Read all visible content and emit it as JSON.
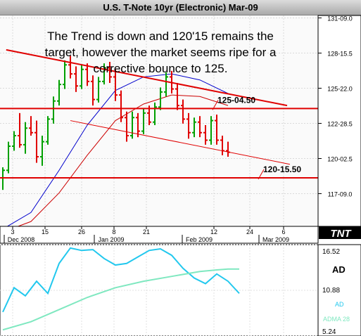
{
  "title": "U.S. T-Note 10yr (Electronic) Mar-09",
  "annotation": {
    "line1": "The Trend is down and 120'15 remains the",
    "line2": "target, however the market seems ripe for a",
    "line3": "corrective bounce to 125."
  },
  "logo_text": "TNT",
  "colors": {
    "bull_candle": "#00a000",
    "bear_candle": "#e00000",
    "trendline": "#e00000",
    "ma_fast": "#0000cc",
    "ma_slow": "#cc0000",
    "ad_line": "#22c8ee",
    "adma_line": "#7fe8c0"
  },
  "chart_data": [
    {
      "type": "candlestick",
      "title": "U.S. T-Note 10yr (Electronic) Mar-09",
      "y_ticks": [
        "131-09.0",
        "128-15.5",
        "125-22.0",
        "122-28.5",
        "120-02.5",
        "117-09.0"
      ],
      "ylim": [
        117.28,
        131.28
      ],
      "x_ticks": [
        "3",
        "15",
        "26",
        "8",
        "21",
        "12",
        "24",
        "6"
      ],
      "x_month_labels": [
        "Dec 2008",
        "Jan 2009",
        "Feb 2009",
        "Mar 2009"
      ],
      "grid": true,
      "candles": [
        {
          "o": 120.5,
          "h": 121.2,
          "l": 119.7,
          "c": 121.0
        },
        {
          "o": 121.0,
          "h": 122.9,
          "l": 120.8,
          "c": 122.6
        },
        {
          "o": 122.6,
          "h": 123.6,
          "l": 122.3,
          "c": 123.3
        },
        {
          "o": 123.3,
          "h": 124.8,
          "l": 122.5,
          "c": 122.7
        },
        {
          "o": 122.7,
          "h": 124.2,
          "l": 122.1,
          "c": 123.8
        },
        {
          "o": 123.8,
          "h": 124.6,
          "l": 123.3,
          "c": 123.5
        },
        {
          "o": 123.5,
          "h": 124.3,
          "l": 121.5,
          "c": 121.9
        },
        {
          "o": 121.9,
          "h": 123.3,
          "l": 121.3,
          "c": 122.9
        },
        {
          "o": 122.9,
          "h": 124.6,
          "l": 122.7,
          "c": 124.4
        },
        {
          "o": 124.4,
          "h": 125.9,
          "l": 124.1,
          "c": 125.6
        },
        {
          "o": 125.6,
          "h": 127.0,
          "l": 125.3,
          "c": 126.7
        },
        {
          "o": 126.7,
          "h": 128.3,
          "l": 126.4,
          "c": 128.0
        },
        {
          "o": 128.0,
          "h": 128.6,
          "l": 127.1,
          "c": 127.4
        },
        {
          "o": 127.4,
          "h": 127.9,
          "l": 126.2,
          "c": 126.6
        },
        {
          "o": 126.6,
          "h": 128.0,
          "l": 126.4,
          "c": 127.7
        },
        {
          "o": 127.7,
          "h": 128.1,
          "l": 126.6,
          "c": 126.9
        },
        {
          "o": 126.9,
          "h": 127.3,
          "l": 125.3,
          "c": 125.7
        },
        {
          "o": 125.7,
          "h": 127.2,
          "l": 125.5,
          "c": 126.9
        },
        {
          "o": 126.9,
          "h": 128.1,
          "l": 126.7,
          "c": 127.8
        },
        {
          "o": 127.8,
          "h": 128.2,
          "l": 126.8,
          "c": 127.2
        },
        {
          "o": 127.2,
          "h": 127.7,
          "l": 125.6,
          "c": 126.0
        },
        {
          "o": 126.0,
          "h": 126.3,
          "l": 124.2,
          "c": 124.5
        },
        {
          "o": 124.5,
          "h": 124.9,
          "l": 122.9,
          "c": 123.3
        },
        {
          "o": 123.3,
          "h": 124.9,
          "l": 123.1,
          "c": 124.5
        },
        {
          "o": 124.5,
          "h": 124.8,
          "l": 123.2,
          "c": 123.6
        },
        {
          "o": 123.6,
          "h": 125.1,
          "l": 123.4,
          "c": 124.8
        },
        {
          "o": 124.8,
          "h": 125.3,
          "l": 124.0,
          "c": 124.2
        },
        {
          "o": 124.2,
          "h": 125.5,
          "l": 124.0,
          "c": 125.2
        },
        {
          "o": 125.2,
          "h": 126.5,
          "l": 125.0,
          "c": 126.2
        },
        {
          "o": 126.2,
          "h": 127.5,
          "l": 125.9,
          "c": 127.2
        },
        {
          "o": 127.2,
          "h": 127.6,
          "l": 126.1,
          "c": 126.4
        },
        {
          "o": 126.4,
          "h": 126.8,
          "l": 125.0,
          "c": 125.3
        },
        {
          "o": 125.3,
          "h": 125.7,
          "l": 124.1,
          "c": 124.4
        },
        {
          "o": 124.4,
          "h": 124.8,
          "l": 123.1,
          "c": 123.5
        },
        {
          "o": 123.5,
          "h": 124.5,
          "l": 123.2,
          "c": 124.2
        },
        {
          "o": 124.2,
          "h": 124.6,
          "l": 123.2,
          "c": 123.5
        },
        {
          "o": 123.5,
          "h": 124.0,
          "l": 122.7,
          "c": 123.0
        },
        {
          "o": 123.0,
          "h": 124.6,
          "l": 122.7,
          "c": 124.3
        },
        {
          "o": 124.3,
          "h": 124.7,
          "l": 122.7,
          "c": 123.0
        },
        {
          "o": 123.0,
          "h": 123.3,
          "l": 122.0,
          "c": 122.3
        },
        {
          "o": 122.3,
          "h": 122.9,
          "l": 121.9,
          "c": 122.2
        }
      ],
      "moving_averages": [
        {
          "color": "blue",
          "points": [
            [
              0,
              117.1
            ],
            [
              5,
              118.2
            ],
            [
              10,
              121.0
            ],
            [
              15,
              124.0
            ],
            [
              20,
              126.3
            ],
            [
              25,
              127.2
            ],
            [
              30,
              127.4
            ],
            [
              35,
              127.0
            ],
            [
              40,
              126.1
            ]
          ]
        },
        {
          "color": "red",
          "points": [
            [
              0,
              116.9
            ],
            [
              5,
              117.6
            ],
            [
              10,
              119.5
            ],
            [
              15,
              122.0
            ],
            [
              20,
              124.3
            ],
            [
              25,
              125.4
            ],
            [
              30,
              126.0
            ],
            [
              35,
              125.9
            ],
            [
              40,
              125.3
            ]
          ]
        }
      ],
      "trendlines": [
        {
          "from": [
            0.6,
            129.0
          ],
          "to": [
            50.5,
            125.3
          ]
        },
        {
          "from": [
            12,
            124.3
          ],
          "to": [
            51,
            121.4
          ]
        }
      ],
      "levels": [
        {
          "label": "125-04.50",
          "value": 125.1
        },
        {
          "label": "120-15.50",
          "value": 120.5
        }
      ]
    },
    {
      "type": "line",
      "y_ticks": [
        "16.52",
        "10.88",
        "5.24"
      ],
      "ylim": [
        5.24,
        16.52
      ],
      "labels": {
        "panel": "AD",
        "ad": "AD",
        "adma": "ADMA 28"
      },
      "series": [
        {
          "name": "AD",
          "values": [
            [
              0,
              8.2
            ],
            [
              2,
              11.2
            ],
            [
              4,
              10.2
            ],
            [
              6,
              12.0
            ],
            [
              8,
              10.5
            ],
            [
              10,
              14.2
            ],
            [
              12,
              16.1
            ],
            [
              14,
              15.8
            ],
            [
              16,
              15.9
            ],
            [
              18,
              14.8
            ],
            [
              20,
              14.0
            ],
            [
              22,
              14.2
            ],
            [
              24,
              15.0
            ],
            [
              26,
              15.8
            ],
            [
              28,
              16.0
            ],
            [
              30,
              15.2
            ],
            [
              32,
              13.6
            ],
            [
              34,
              12.4
            ],
            [
              36,
              11.7
            ],
            [
              38,
              12.9
            ],
            [
              40,
              12.0
            ],
            [
              42,
              10.5
            ]
          ]
        },
        {
          "name": "ADMA 28",
          "values": [
            [
              0,
              6.0
            ],
            [
              5,
              7.0
            ],
            [
              10,
              8.5
            ],
            [
              15,
              10.0
            ],
            [
              20,
              11.2
            ],
            [
              25,
              12.0
            ],
            [
              30,
              12.6
            ],
            [
              35,
              13.2
            ],
            [
              38,
              13.4
            ],
            [
              40,
              13.5
            ],
            [
              42,
              13.5
            ]
          ]
        }
      ]
    }
  ]
}
